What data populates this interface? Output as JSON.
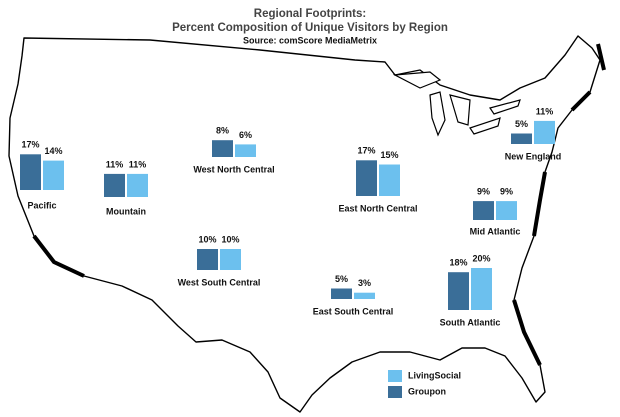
{
  "chart_data": {
    "type": "map-bar",
    "title": "Regional Footprints:",
    "subtitle": "Percent Composition  of Unique Visitors by Region",
    "source": "Source: comScore MediaMetrix",
    "categories": [
      "Pacific",
      "Mountain",
      "West North Central",
      "East North Central",
      "New England",
      "Mid Atlantic",
      "West South Central",
      "East South Central",
      "South Atlantic"
    ],
    "series": [
      {
        "name": "Groupon",
        "color": "#3a6e98",
        "values": [
          17,
          11,
          8,
          17,
          5,
          9,
          10,
          5,
          18
        ],
        "value_labels": [
          "17%",
          "11%",
          "8%",
          "17%",
          "5%",
          "9%",
          "10%",
          "5%",
          "18%"
        ]
      },
      {
        "name": "LivingSocial",
        "color": "#6cc0ee",
        "values": [
          14,
          11,
          6,
          15,
          11,
          9,
          10,
          3,
          20
        ],
        "value_labels": [
          "14%",
          "11%",
          "6%",
          "15%",
          "11%",
          "9%",
          "10%",
          "3%",
          "20%"
        ]
      }
    ]
  }
}
